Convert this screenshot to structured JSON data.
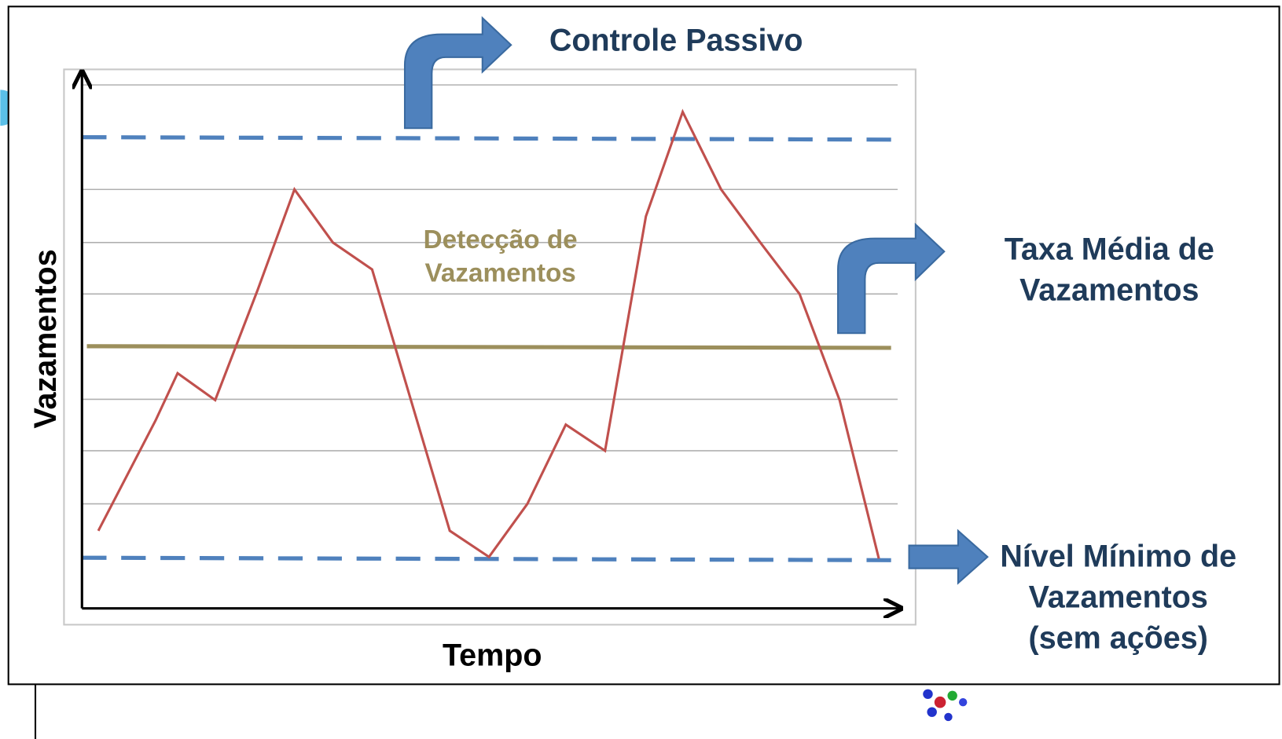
{
  "labels": {
    "controle_passivo": "Controle Passivo",
    "taxa_media": [
      "Taxa Média de",
      "Vazamentos"
    ],
    "nivel_minimo": [
      "Nível Mínimo de",
      "Vazamentos",
      "(sem ações)"
    ],
    "deteccao": [
      "Detecção de",
      "Vazamentos"
    ],
    "y_axis": "Vazamentos",
    "x_axis": "Tempo"
  }
}
